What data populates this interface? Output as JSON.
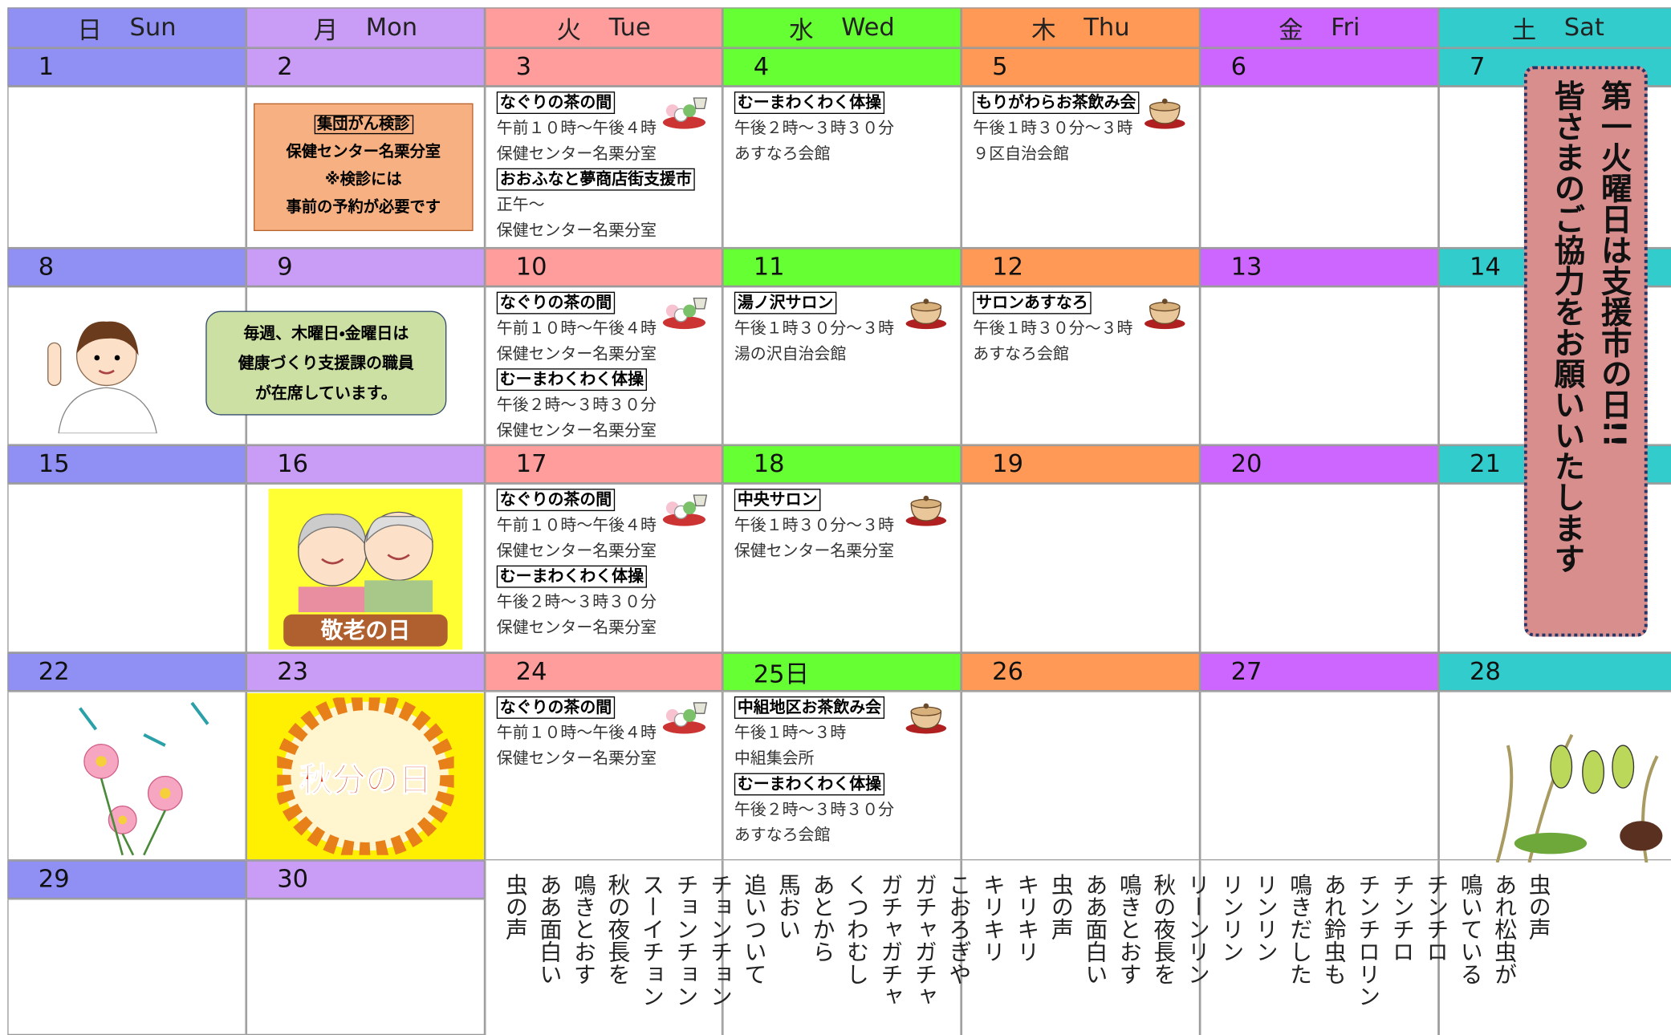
{
  "days": [
    {
      "kanji": "日",
      "en": "Sun",
      "color": "#8f8ff4"
    },
    {
      "kanji": "月",
      "en": "Mon",
      "color": "#c99cf6"
    },
    {
      "kanji": "火",
      "en": "Tue",
      "color": "#ff9c9c"
    },
    {
      "kanji": "水",
      "en": "Wed",
      "color": "#66ff33"
    },
    {
      "kanji": "木",
      "en": "Thu",
      "color": "#ff9955"
    },
    {
      "kanji": "金",
      "en": "Fri",
      "color": "#cc66ff"
    },
    {
      "kanji": "土",
      "en": "Sat",
      "color": "#33cccc"
    }
  ],
  "weeks": [
    {
      "dates": [
        "1",
        "2",
        "3",
        "4",
        "5",
        "6",
        "7"
      ]
    },
    {
      "dates": [
        "8",
        "9",
        "10",
        "11",
        "12",
        "13",
        "14"
      ]
    },
    {
      "dates": [
        "15",
        "16",
        "17",
        "18",
        "19",
        "20",
        "21"
      ]
    },
    {
      "dates": [
        "22",
        "23",
        "24",
        "25日",
        "26",
        "27",
        "28"
      ]
    },
    {
      "dates": [
        "29",
        "30"
      ]
    }
  ],
  "events": {
    "3": [
      {
        "title": "なぐりの茶の間",
        "lines": [
          "午前１０時～午後４時",
          "保健センター名栗分室"
        ]
      },
      {
        "title": "おおふなと夢商店街支援市",
        "lines": [
          "正午～",
          "保健センター名栗分室"
        ]
      }
    ],
    "4": [
      {
        "title": "むーまわくわく体操",
        "lines": [
          "午後２時～３時３０分",
          "あすなろ会館"
        ]
      }
    ],
    "5": [
      {
        "title": "もりがわらお茶飲み会",
        "lines": [
          "午後１時３０分～３時",
          "９区自治会館"
        ]
      }
    ],
    "10": [
      {
        "title": "なぐりの茶の間",
        "lines": [
          "午前１０時～午後４時",
          "保健センター名栗分室"
        ]
      },
      {
        "title": "むーまわくわく体操",
        "lines": [
          "午後２時～３時３０分",
          "保健センター名栗分室"
        ]
      }
    ],
    "11": [
      {
        "title": "湯ノ沢サロン",
        "lines": [
          "午後１時３０分～３時",
          "湯の沢自治会館"
        ]
      }
    ],
    "12": [
      {
        "title": "サロンあすなろ",
        "lines": [
          "午後１時３０分～３時",
          "あすなろ会館"
        ]
      }
    ],
    "17": [
      {
        "title": "なぐりの茶の間",
        "lines": [
          "午前１０時～午後４時",
          "保健センター名栗分室"
        ]
      },
      {
        "title": "むーまわくわく体操",
        "lines": [
          "午後２時～３時３０分",
          "保健センター名栗分室"
        ]
      }
    ],
    "18": [
      {
        "title": "中央サロン",
        "lines": [
          "午後１時３０分～３時",
          "保健センター名栗分室"
        ]
      }
    ],
    "24": [
      {
        "title": "なぐりの茶の間",
        "lines": [
          "午前１０時～午後４時",
          "保健センター名栗分室"
        ]
      }
    ],
    "25日": [
      {
        "title": "中組地区お茶飲み会",
        "lines": [
          "午後１時～３時",
          "中組集会所"
        ]
      },
      {
        "title": "むーまわくわく体操",
        "lines": [
          "午後２時～３時３０分",
          "あすなろ会館"
        ]
      }
    ]
  },
  "note": {
    "title": "集団がん検診",
    "lines": [
      "保健センター名栗分室",
      "※検診には",
      "事前の予約が必要です"
    ]
  },
  "bubble": [
    "毎週、木曜日・金曜日は",
    "健康づくり支援課の職員",
    "が在席しています。"
  ],
  "holidays": {
    "keiro": "敬老の日",
    "shubun": "秋分の日"
  },
  "banner": [
    "第一火曜日は支援市の日!!",
    "皆さまのご協力をお願いいたします"
  ],
  "poem": [
    "虫の声",
    "あれ松虫が",
    "鳴いている",
    "チンチロ",
    "チンチロ",
    "チンチロリン",
    "あれ鈴虫も",
    "鳴きだした",
    "リンリン",
    "リンリン",
    "リーンリン",
    "秋の夜長を",
    "鳴きとおす",
    "ああ面白い",
    "虫の声",
    "キリキリ",
    "キリキリ",
    "こおろぎや",
    "ガチャガチャ",
    "ガチャガチャ",
    "くつわむし",
    "あとから",
    "馬おい",
    "追いついて",
    "チョンチョン",
    "チョンチョン",
    "スーイチョン",
    "秋の夜長を",
    "鳴きとおす",
    "ああ面白い",
    "虫の声"
  ]
}
